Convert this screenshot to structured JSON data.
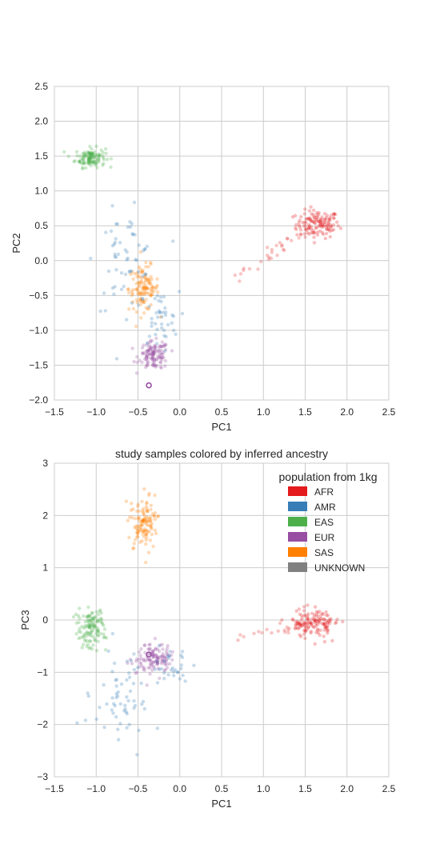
{
  "chart_data": [
    {
      "type": "scatter",
      "title": "",
      "xlabel": "PC1",
      "ylabel": "PC2",
      "xlim": [
        -1.5,
        2.5
      ],
      "ylim": [
        -2.0,
        2.5
      ],
      "xticks": [
        -1.5,
        -1.0,
        -0.5,
        0.0,
        0.5,
        1.0,
        1.5,
        2.0,
        2.5
      ],
      "xtick_labels": [
        "−1.5",
        "−1.0",
        "−0.5",
        "0.0",
        "0.5",
        "1.0",
        "1.5",
        "2.0",
        "2.5"
      ],
      "yticks": [
        -2.0,
        -1.5,
        -1.0,
        -0.5,
        0.0,
        0.5,
        1.0,
        1.5,
        2.0,
        2.5
      ],
      "ytick_labels": [
        "−2.0",
        "−1.5",
        "−1.0",
        "−0.5",
        "0.0",
        "0.5",
        "1.0",
        "1.5",
        "2.0",
        "2.5"
      ],
      "grid": true,
      "legend": null,
      "clusters": [
        {
          "population": "AFR",
          "center": [
            1.65,
            0.52
          ],
          "spread": [
            0.13,
            0.1
          ],
          "n": 130
        },
        {
          "population": "EAS",
          "center": [
            -1.07,
            1.48
          ],
          "spread": [
            0.09,
            0.07
          ],
          "n": 120
        },
        {
          "population": "SAS",
          "center": [
            -0.43,
            -0.4
          ],
          "spread": [
            0.09,
            0.16
          ],
          "n": 120
        },
        {
          "population": "EUR",
          "center": [
            -0.31,
            -1.36
          ],
          "spread": [
            0.09,
            0.1
          ],
          "n": 120
        },
        {
          "population": "AMR",
          "center": [
            -0.65,
            0.0
          ],
          "spread": [
            0.18,
            0.35
          ],
          "n": 60
        },
        {
          "population": "AMR",
          "center": [
            -0.25,
            -0.85
          ],
          "spread": [
            0.12,
            0.2
          ],
          "n": 40
        }
      ],
      "admixed_lines": [
        {
          "population": "AFR",
          "from": [
            0.6,
            -0.3
          ],
          "to": [
            1.5,
            0.45
          ],
          "n": 30
        }
      ],
      "highlighted_points": [
        {
          "population": "EUR",
          "x": -0.37,
          "y": -1.79
        }
      ]
    },
    {
      "type": "scatter",
      "title": "study samples colored by inferred ancestry",
      "xlabel": "PC1",
      "ylabel": "PC3",
      "xlim": [
        -1.5,
        2.5
      ],
      "ylim": [
        -3.0,
        3.0
      ],
      "xticks": [
        -1.5,
        -1.0,
        -0.5,
        0.0,
        0.5,
        1.0,
        1.5,
        2.0,
        2.5
      ],
      "xtick_labels": [
        "−1.5",
        "−1.0",
        "−0.5",
        "0.0",
        "0.5",
        "1.0",
        "1.5",
        "2.0",
        "2.5"
      ],
      "yticks": [
        -3,
        -2,
        -1,
        0,
        1,
        2,
        3
      ],
      "ytick_labels": [
        "−3",
        "−2",
        "−1",
        "0",
        "1",
        "2",
        "3"
      ],
      "grid": true,
      "legend": {
        "title": "population from 1kg",
        "placement": "top-right",
        "entries": [
          {
            "label": "AFR",
            "color": "#e41a1c"
          },
          {
            "label": "AMR",
            "color": "#377eb8"
          },
          {
            "label": "EAS",
            "color": "#4daf4a"
          },
          {
            "label": "EUR",
            "color": "#984ea3"
          },
          {
            "label": "SAS",
            "color": "#ff7f00"
          },
          {
            "label": "UNKNOWN",
            "color": "#808080"
          }
        ]
      },
      "clusters": [
        {
          "population": "AFR",
          "center": [
            1.62,
            -0.05
          ],
          "spread": [
            0.14,
            0.14
          ],
          "n": 130
        },
        {
          "population": "EAS",
          "center": [
            -1.07,
            -0.18
          ],
          "spread": [
            0.09,
            0.18
          ],
          "n": 120
        },
        {
          "population": "SAS",
          "center": [
            -0.43,
            1.85
          ],
          "spread": [
            0.08,
            0.25
          ],
          "n": 120
        },
        {
          "population": "EUR",
          "center": [
            -0.31,
            -0.72
          ],
          "spread": [
            0.1,
            0.14
          ],
          "n": 120
        },
        {
          "population": "AMR",
          "center": [
            -0.7,
            -1.5
          ],
          "spread": [
            0.18,
            0.45
          ],
          "n": 60
        },
        {
          "population": "AMR",
          "center": [
            -0.1,
            -0.9
          ],
          "spread": [
            0.12,
            0.15
          ],
          "n": 30
        }
      ],
      "admixed_lines": [
        {
          "population": "AFR",
          "from": [
            0.7,
            -0.3
          ],
          "to": [
            1.45,
            -0.1
          ],
          "n": 25
        }
      ],
      "highlighted_points": [
        {
          "population": "EUR",
          "x": -0.37,
          "y": -0.66
        }
      ]
    }
  ]
}
